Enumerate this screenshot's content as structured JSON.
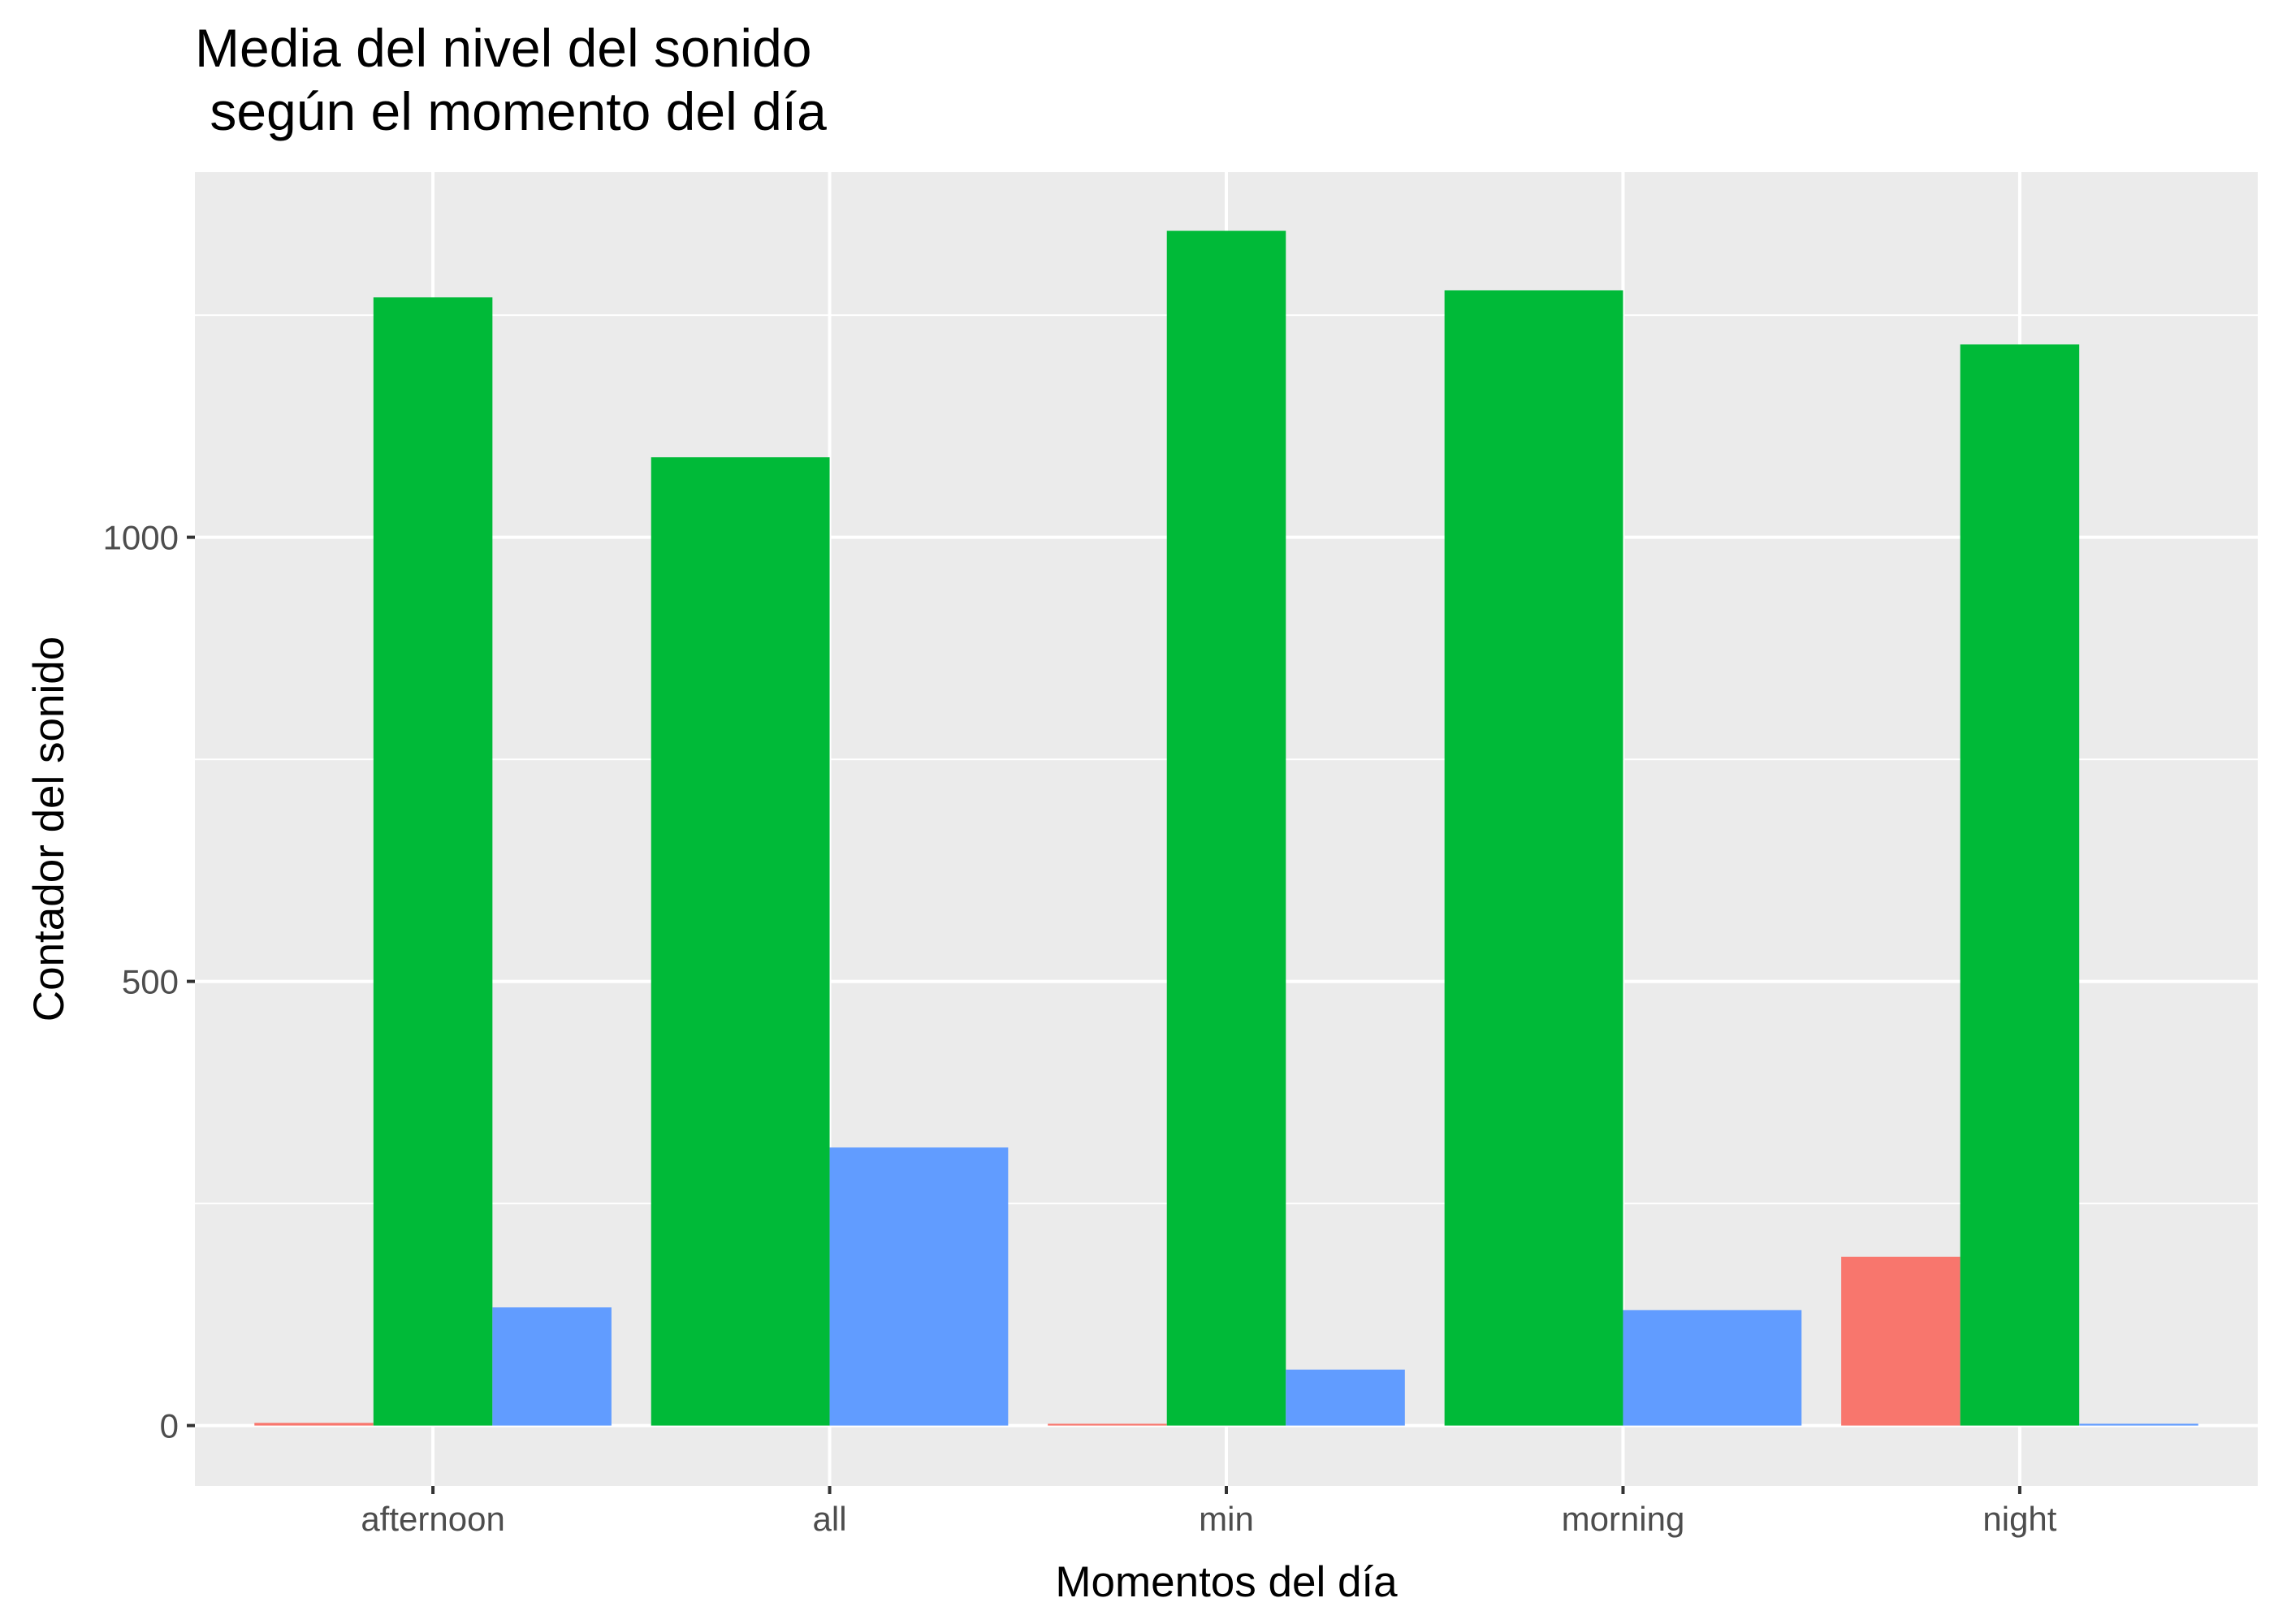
{
  "chart_data": {
    "type": "bar",
    "title_lines": [
      "Media del nivel del sonido",
      " según el momento del día"
    ],
    "xlabel": "Momentos del día",
    "ylabel": "Contador del sonido",
    "categories": [
      "afternoon",
      "all",
      "min",
      "morning",
      "night"
    ],
    "series": [
      {
        "values": [
          3,
          null,
          2,
          null,
          190
        ],
        "color": "#F8766D"
      },
      {
        "values": [
          1270,
          1090,
          1345,
          1278,
          1217
        ],
        "color": "#00BA38"
      },
      {
        "values": [
          133,
          313,
          63,
          130,
          2
        ],
        "color": "#619CFF"
      }
    ],
    "yticks": [
      0,
      500,
      1000
    ],
    "ylim": [
      -68,
      1411
    ],
    "grid": true,
    "legend": "none",
    "panel_background": "#EBEBEB",
    "grid_color": "#FFFFFF"
  }
}
